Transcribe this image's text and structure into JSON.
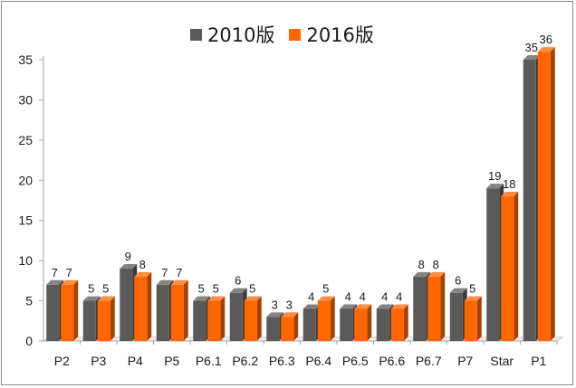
{
  "chart_data": {
    "type": "bar",
    "title": "",
    "xlabel": "",
    "ylabel": "",
    "categories": [
      "P2",
      "P3",
      "P4",
      "P5",
      "P6.1",
      "P6.2",
      "P6.3",
      "P6.4",
      "P6.5",
      "P6.6",
      "P6.7",
      "P7",
      "Star",
      "P1"
    ],
    "series": [
      {
        "name": "2010版",
        "color": "#5a5a5a",
        "values": [
          7,
          5,
          9,
          7,
          5,
          6,
          3,
          4,
          4,
          4,
          8,
          6,
          19,
          35
        ]
      },
      {
        "name": "2016版",
        "color": "#ff6600",
        "values": [
          7,
          5,
          8,
          7,
          5,
          5,
          3,
          5,
          4,
          4,
          8,
          5,
          18,
          36
        ]
      }
    ],
    "ylim": [
      0,
      35
    ],
    "yticks": [
      0,
      5,
      10,
      15,
      20,
      25,
      30,
      35
    ],
    "grid": false,
    "legend_position": "top-center",
    "style_3d": true
  }
}
